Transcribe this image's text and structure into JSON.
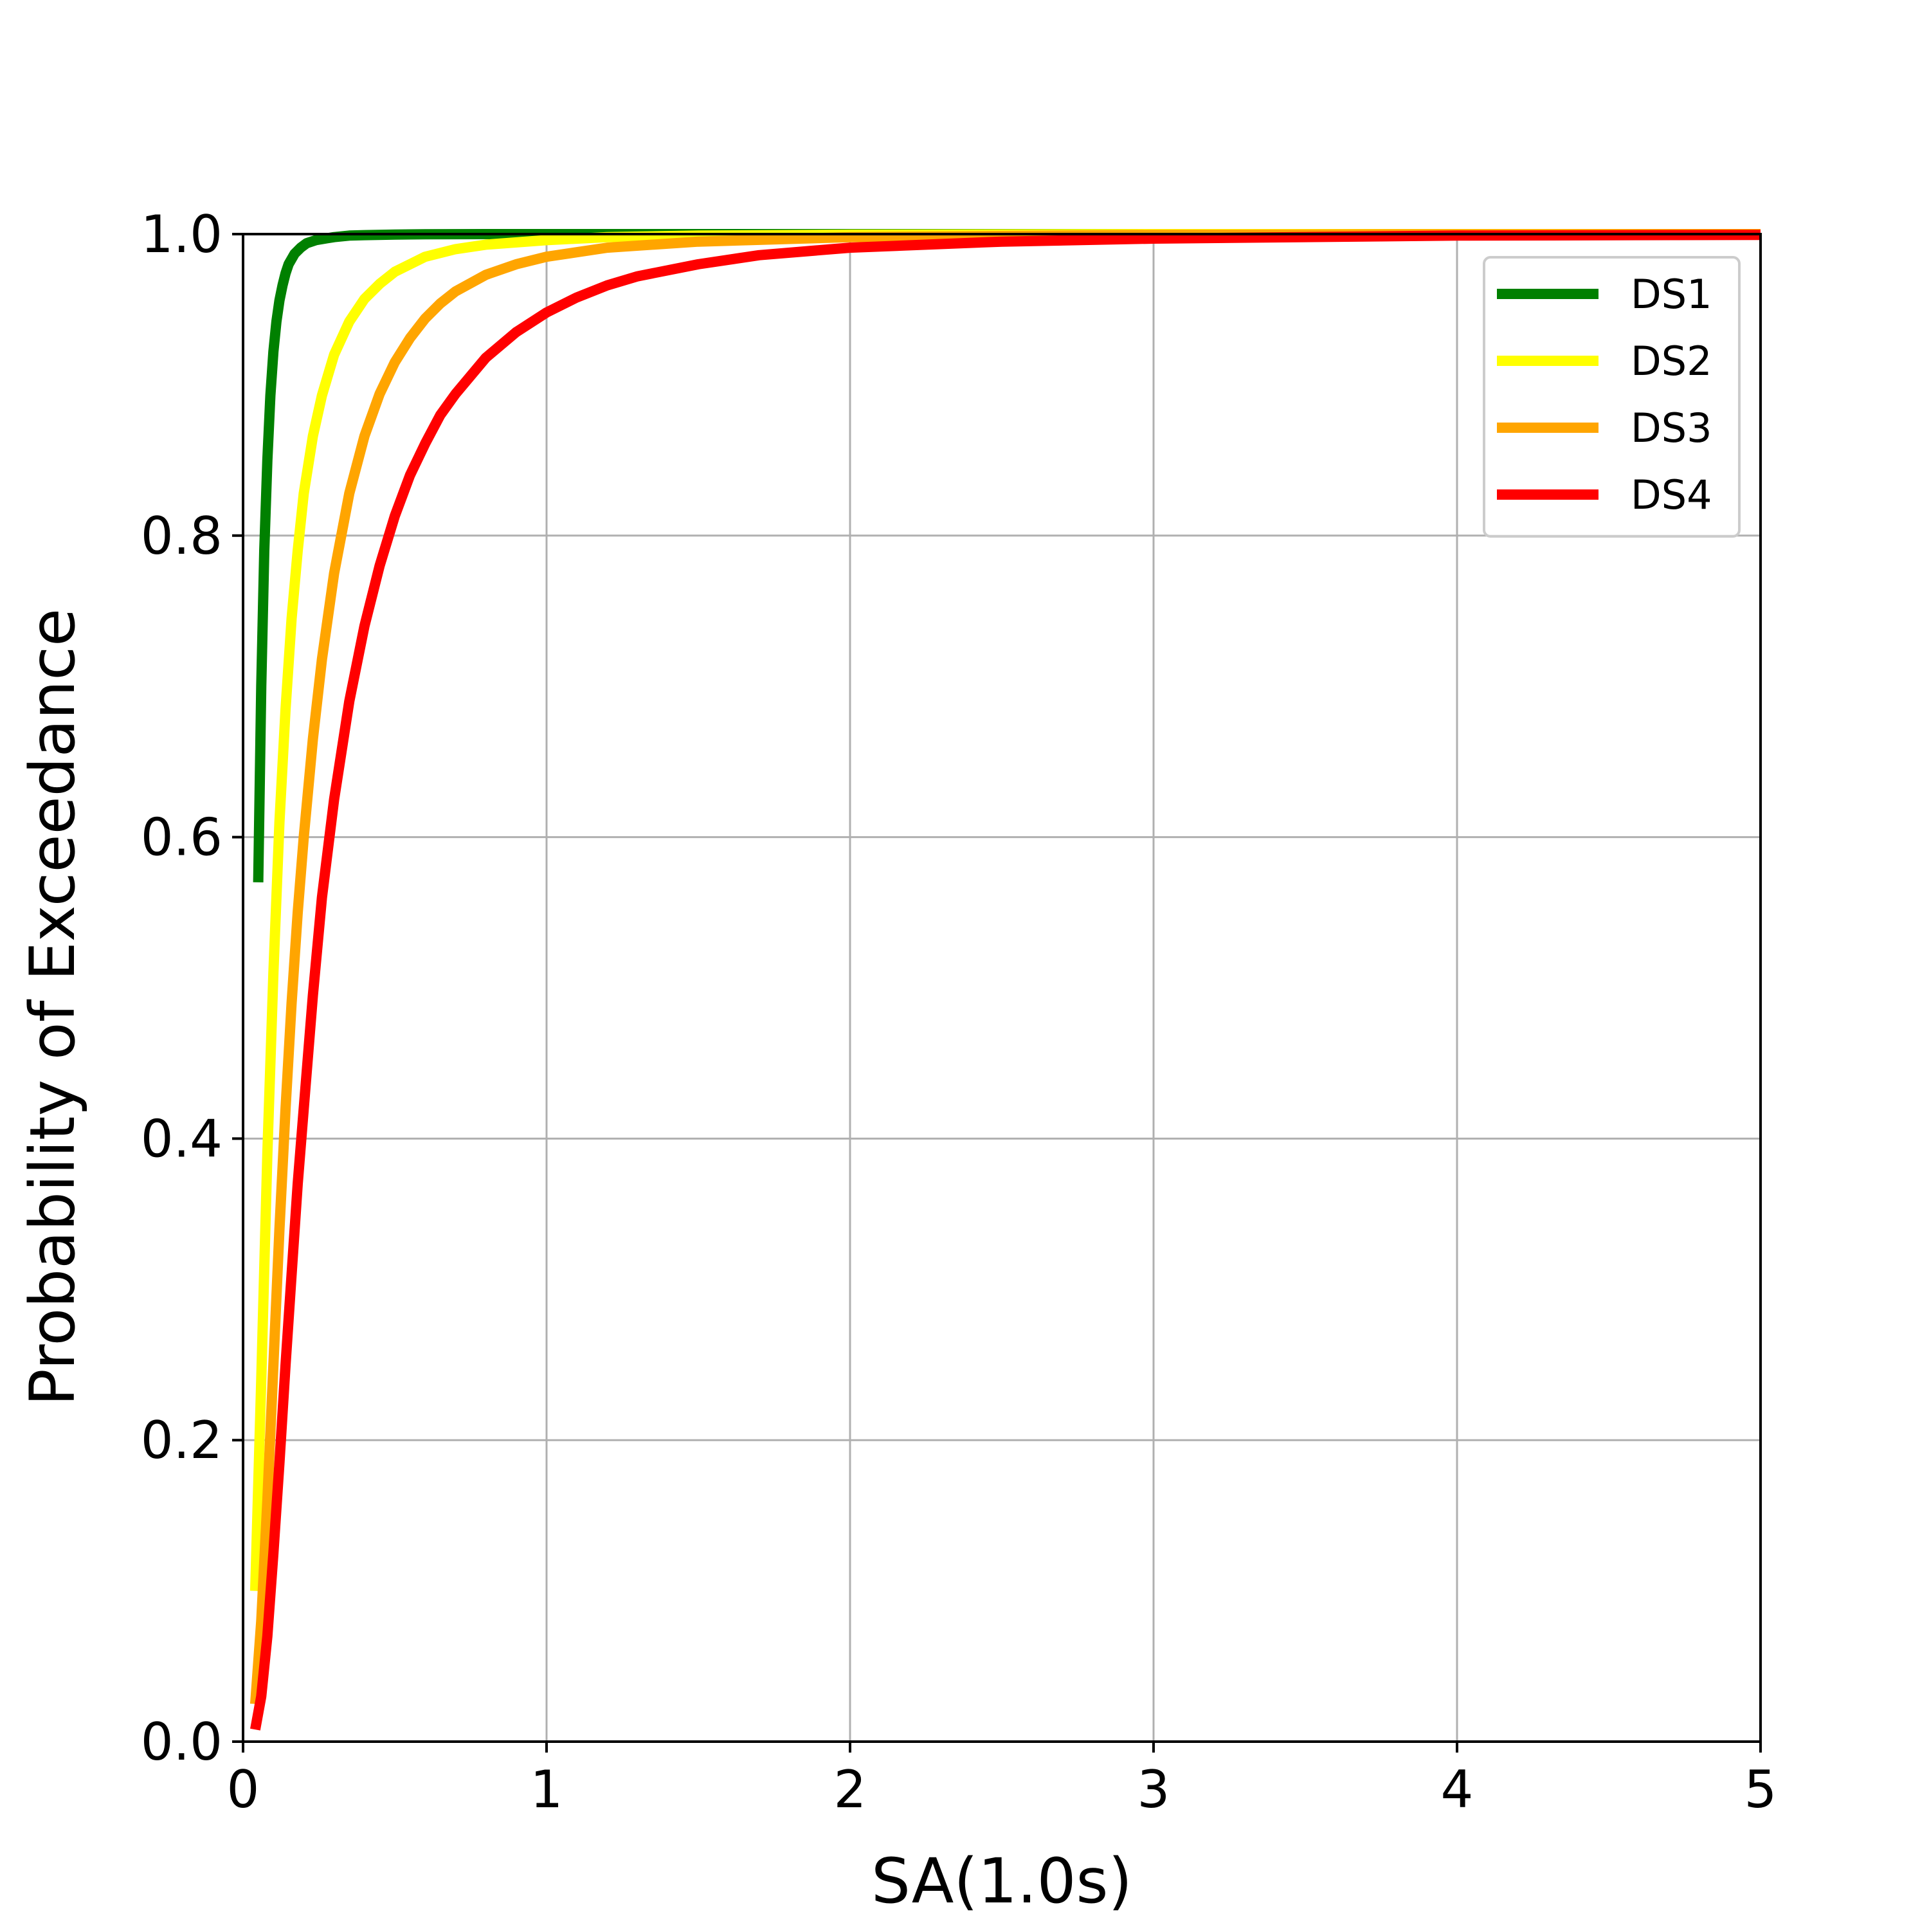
{
  "chart_data": {
    "type": "line",
    "title": "",
    "xlabel": "SA(1.0s)",
    "ylabel": "Probability of Exceedance",
    "xlim": [
      0,
      5
    ],
    "ylim": [
      0,
      1
    ],
    "x_ticks": [
      "0",
      "1",
      "2",
      "3",
      "4",
      "5"
    ],
    "y_ticks": [
      "0.0",
      "0.2",
      "0.4",
      "0.6",
      "0.8",
      "1.0"
    ],
    "grid": true,
    "legend_position": "top-right",
    "series": [
      {
        "name": "DS1",
        "color": "#008000",
        "x": [
          0.05,
          0.06,
          0.07,
          0.08,
          0.09,
          0.1,
          0.11,
          0.12,
          0.13,
          0.14,
          0.15,
          0.17,
          0.19,
          0.21,
          0.24,
          0.27,
          0.3,
          0.35,
          0.4,
          0.5,
          0.6,
          0.8,
          1.0,
          1.5,
          2.0,
          3.0,
          4.0,
          5.0
        ],
        "y": [
          0.57,
          0.7,
          0.79,
          0.85,
          0.893,
          0.922,
          0.942,
          0.956,
          0.966,
          0.974,
          0.98,
          0.987,
          0.991,
          0.994,
          0.996,
          0.997,
          0.998,
          0.999,
          0.9993,
          0.9997,
          0.9999,
          1.0,
          1.0,
          1.0,
          1.0,
          1.0,
          1.0,
          1.0
        ]
      },
      {
        "name": "DS2",
        "color": "#ffff00",
        "x": [
          0.04,
          0.06,
          0.08,
          0.1,
          0.12,
          0.14,
          0.16,
          0.18,
          0.2,
          0.23,
          0.26,
          0.3,
          0.35,
          0.4,
          0.45,
          0.5,
          0.6,
          0.7,
          0.8,
          1.0,
          1.2,
          1.5,
          2.0,
          3.0,
          4.0,
          5.0
        ],
        "y": [
          0.1,
          0.24,
          0.39,
          0.51,
          0.61,
          0.685,
          0.745,
          0.79,
          0.828,
          0.866,
          0.893,
          0.92,
          0.942,
          0.957,
          0.967,
          0.975,
          0.985,
          0.99,
          0.993,
          0.996,
          0.998,
          0.999,
          0.9996,
          1.0,
          1.0,
          1.0
        ]
      },
      {
        "name": "DS3",
        "color": "#ffa500",
        "x": [
          0.04,
          0.06,
          0.08,
          0.1,
          0.12,
          0.14,
          0.16,
          0.18,
          0.2,
          0.23,
          0.26,
          0.3,
          0.35,
          0.4,
          0.45,
          0.5,
          0.55,
          0.6,
          0.65,
          0.7,
          0.8,
          0.9,
          1.0,
          1.2,
          1.5,
          2.0,
          3.0,
          4.0,
          5.0
        ],
        "y": [
          0.025,
          0.08,
          0.16,
          0.25,
          0.34,
          0.42,
          0.49,
          0.55,
          0.6,
          0.665,
          0.718,
          0.775,
          0.828,
          0.866,
          0.894,
          0.915,
          0.931,
          0.944,
          0.954,
          0.962,
          0.973,
          0.98,
          0.985,
          0.991,
          0.995,
          0.998,
          0.9995,
          0.9999,
          1.0
        ]
      },
      {
        "name": "DS4",
        "color": "#ff0000",
        "x": [
          0.04,
          0.06,
          0.08,
          0.1,
          0.12,
          0.14,
          0.16,
          0.18,
          0.2,
          0.23,
          0.26,
          0.3,
          0.35,
          0.4,
          0.45,
          0.5,
          0.55,
          0.6,
          0.65,
          0.7,
          0.8,
          0.9,
          1.0,
          1.1,
          1.2,
          1.3,
          1.5,
          1.7,
          2.0,
          2.5,
          3.0,
          4.0,
          5.0
        ],
        "y": [
          0.008,
          0.03,
          0.07,
          0.125,
          0.185,
          0.25,
          0.31,
          0.37,
          0.42,
          0.495,
          0.56,
          0.625,
          0.69,
          0.74,
          0.78,
          0.813,
          0.84,
          0.861,
          0.88,
          0.894,
          0.918,
          0.935,
          0.948,
          0.958,
          0.966,
          0.972,
          0.98,
          0.986,
          0.991,
          0.995,
          0.997,
          0.999,
          0.9995
        ]
      }
    ]
  }
}
